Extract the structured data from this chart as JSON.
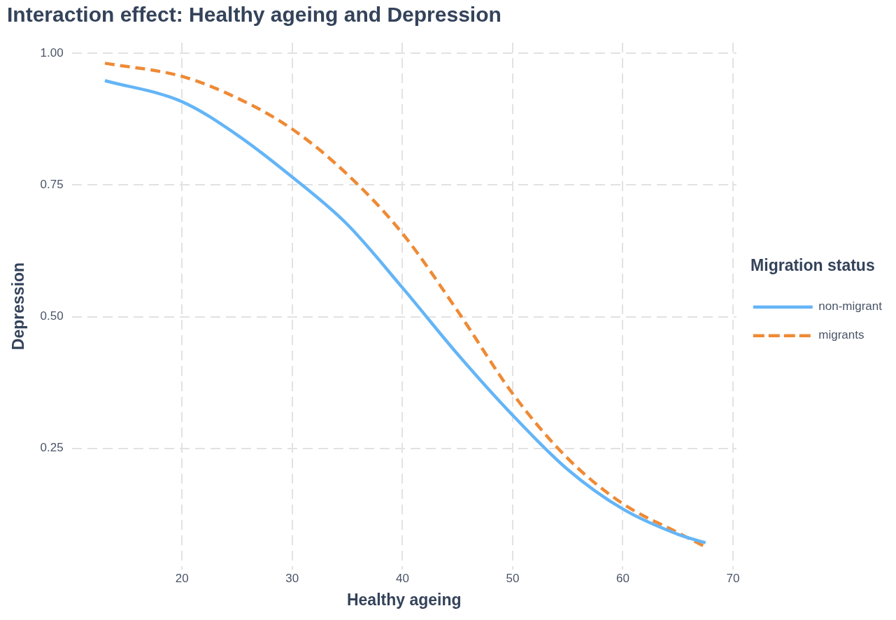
{
  "chart_data": {
    "type": "line",
    "title": "Interaction effect: Healthy ageing and Depression",
    "xlabel": "Healthy ageing",
    "ylabel": "Depression",
    "legend_title": "Migration status",
    "x": [
      13,
      20,
      25,
      30,
      35,
      40,
      45,
      50,
      55,
      60,
      65,
      67.5
    ],
    "series": [
      {
        "name": "non-migrant",
        "color": "#64b5f6",
        "line_style": "solid",
        "values": [
          0.948,
          0.908,
          0.845,
          0.765,
          0.675,
          0.555,
          0.429,
          0.313,
          0.21,
          0.135,
          0.087,
          0.071
        ]
      },
      {
        "name": "migrants",
        "color": "#ef8a35",
        "line_style": "dashed",
        "values": [
          0.981,
          0.956,
          0.915,
          0.856,
          0.77,
          0.658,
          0.511,
          0.354,
          0.231,
          0.145,
          0.09,
          0.063
        ]
      }
    ],
    "xlim": [
      10,
      70.3
    ],
    "ylim": [
      0.02,
      1.02
    ],
    "xticks": [
      20,
      30,
      40,
      50,
      60,
      70
    ],
    "yticks": [
      {
        "value": 0.25,
        "label": "0.25"
      },
      {
        "value": 0.5,
        "label": "0.50"
      },
      {
        "value": 0.75,
        "label": "0.75"
      },
      {
        "value": 1,
        "label": "1.00"
      }
    ],
    "grid": true,
    "legend": "right"
  }
}
